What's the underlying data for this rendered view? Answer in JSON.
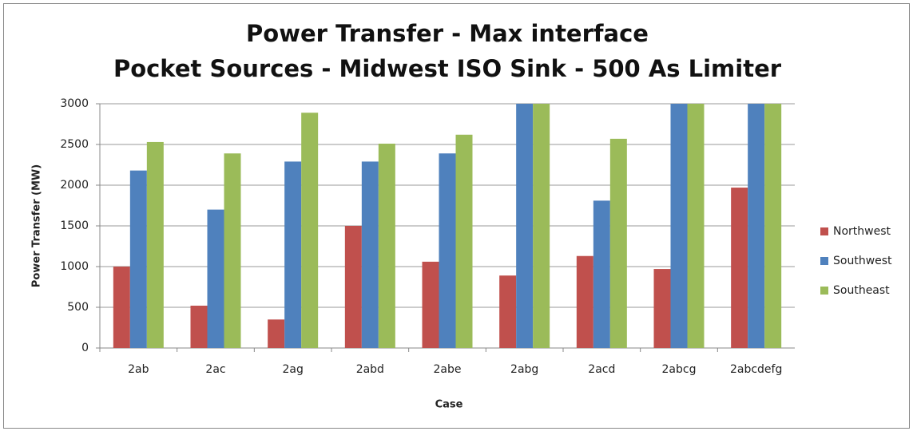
{
  "chart_data": {
    "type": "bar",
    "title": "Power Transfer - Max interface",
    "subtitle": "Pocket Sources - Midwest ISO Sink - 500 As Limiter",
    "x_label": "Case",
    "y_label": "Power Transfer (MW)",
    "categories": [
      "2ab",
      "2ac",
      "2ag",
      "2abd",
      "2abe",
      "2abg",
      "2acd",
      "2abcg",
      "2abcdefg"
    ],
    "series": [
      {
        "name": "Northwest",
        "color": "#c0504d",
        "values": [
          1000,
          520,
          350,
          1500,
          1060,
          890,
          1130,
          970,
          1970
        ]
      },
      {
        "name": "Southwest",
        "color": "#4f81bd",
        "values": [
          2180,
          1700,
          2290,
          2290,
          2390,
          3000,
          1810,
          3000,
          3000
        ]
      },
      {
        "name": "Southeast",
        "color": "#9bbb59",
        "values": [
          2530,
          2390,
          2890,
          2510,
          2620,
          3000,
          2570,
          3000,
          3000
        ]
      }
    ],
    "ylim": [
      0,
      3000
    ],
    "yticks": [
      0,
      500,
      1000,
      1500,
      2000,
      2500,
      3000
    ],
    "grid": true,
    "legend": "right"
  }
}
